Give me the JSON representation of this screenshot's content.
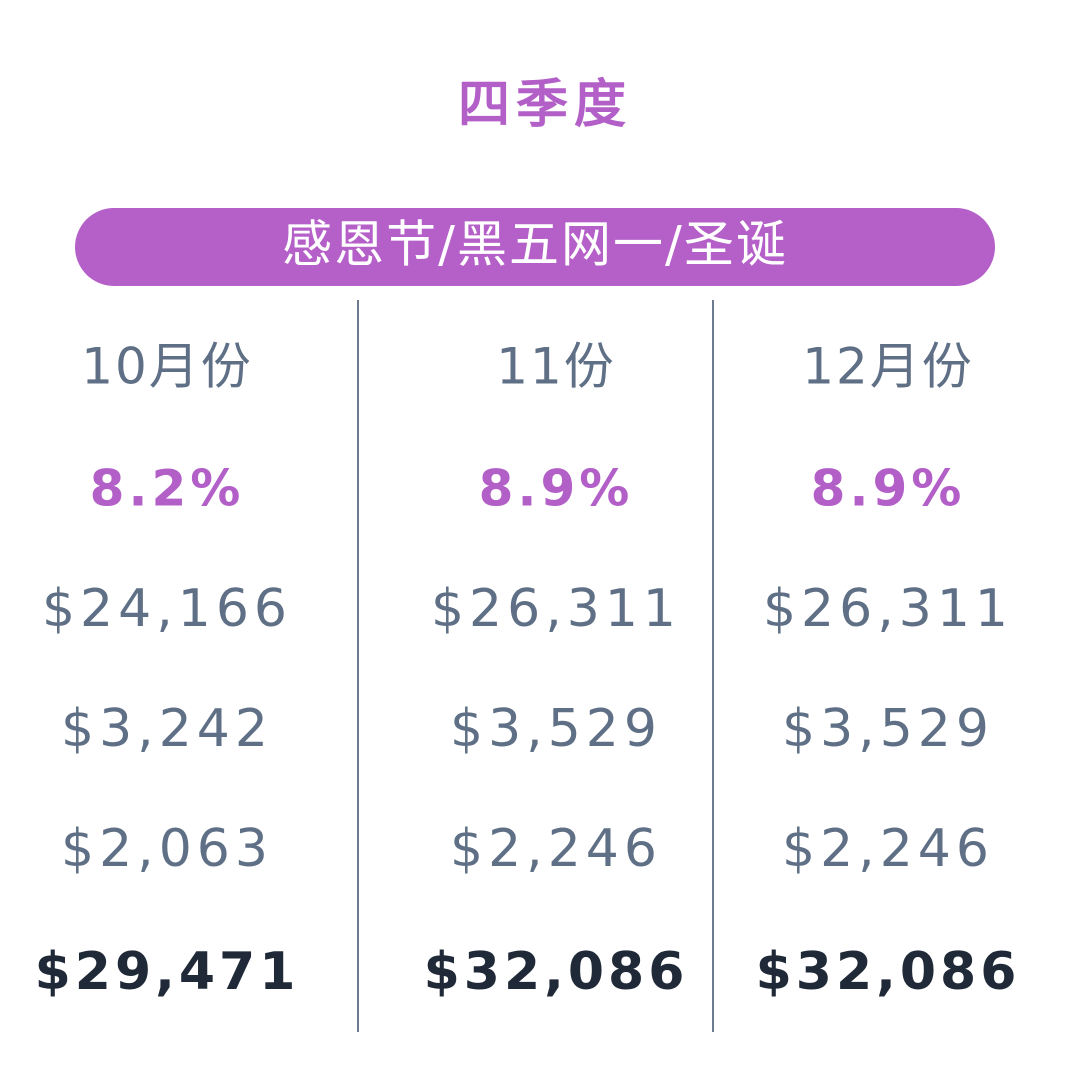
{
  "title": "四季度",
  "banner": "感恩节/黑五网一/圣诞",
  "columns": [
    {
      "header": "10月份",
      "rate": "8.2%",
      "amounts": [
        "$24,166",
        "$3,242",
        "$2,063"
      ],
      "total": "$29,471"
    },
    {
      "header": "11份",
      "rate": "8.9%",
      "amounts": [
        "$26,311",
        "$3,529",
        "$2,246"
      ],
      "total": "$32,086"
    },
    {
      "header": "12月份",
      "rate": "8.9%",
      "amounts": [
        "$26,311",
        "$3,529",
        "$2,246"
      ],
      "total": "$32,086"
    }
  ]
}
